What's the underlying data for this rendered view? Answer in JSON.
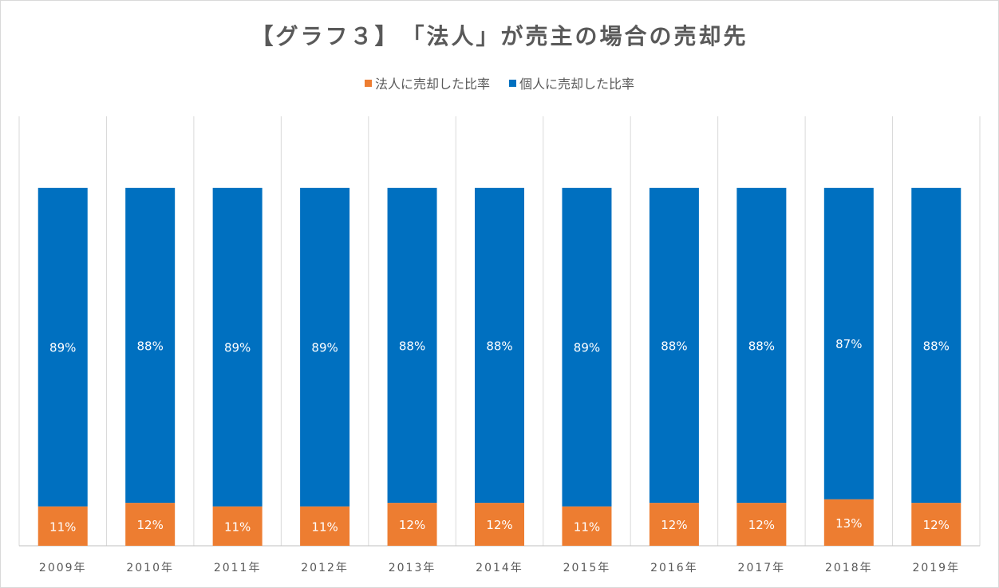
{
  "chart_data": {
    "type": "bar",
    "stacked": true,
    "percent": true,
    "title": "【グラフ３】　「法人」が売主の場合の売却先",
    "categories": [
      "2009年",
      "2010年",
      "2011年",
      "2012年",
      "2013年",
      "2014年",
      "2015年",
      "2016年",
      "2017年",
      "2018年",
      "2019年"
    ],
    "series": [
      {
        "name": "法人に売却した比率",
        "color": "#ED7D31",
        "values": [
          11,
          12,
          11,
          11,
          12,
          12,
          11,
          12,
          12,
          13,
          12
        ],
        "labels": [
          "11%",
          "12%",
          "11%",
          "11%",
          "12%",
          "12%",
          "11%",
          "12%",
          "12%",
          "13%",
          "12%"
        ]
      },
      {
        "name": "個人に売却した比率",
        "color": "#0070C0",
        "values": [
          89,
          88,
          89,
          89,
          88,
          88,
          89,
          88,
          88,
          87,
          88
        ],
        "labels": [
          "89%",
          "88%",
          "89%",
          "89%",
          "88%",
          "88%",
          "89%",
          "88%",
          "88%",
          "87%",
          "88%"
        ]
      }
    ],
    "ylim": [
      0,
      120
    ],
    "grid": "vertical",
    "legend": "top"
  }
}
